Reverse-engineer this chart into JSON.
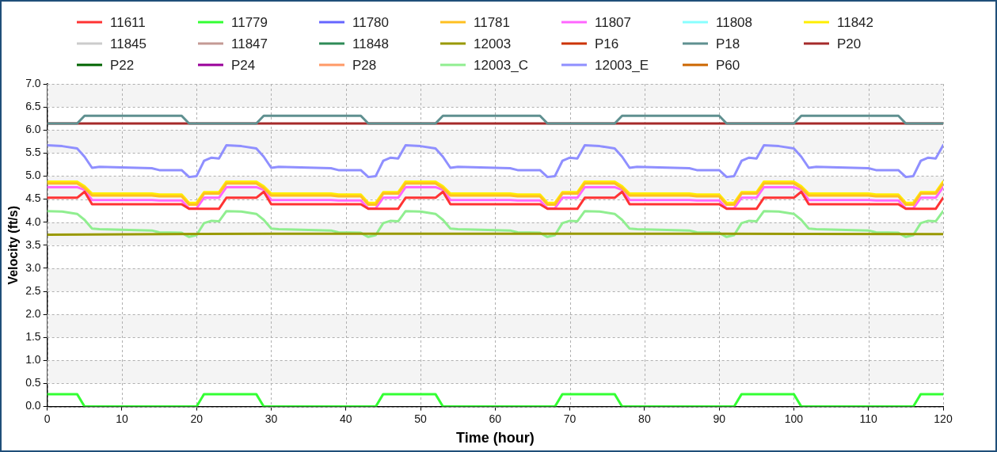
{
  "chart_data": {
    "type": "line",
    "xlabel": "Time (hour)",
    "ylabel": "Velocity (ft/s)",
    "x": [
      0,
      4,
      5,
      6,
      14,
      15,
      18,
      19,
      20,
      21,
      23,
      24,
      28,
      29,
      30,
      38,
      39,
      42,
      43,
      44,
      45,
      47,
      48,
      52,
      53,
      54,
      62,
      63,
      66,
      67,
      68,
      69,
      71,
      72,
      76,
      77,
      78,
      86,
      87,
      90,
      91,
      92,
      93,
      95,
      96,
      100,
      101,
      102,
      110,
      111,
      114,
      115,
      116,
      117,
      119,
      120
    ],
    "xlim": [
      0,
      120
    ],
    "xticks": [
      0,
      10,
      20,
      30,
      40,
      50,
      60,
      70,
      80,
      90,
      100,
      110,
      120
    ],
    "ylim": [
      0,
      7
    ],
    "yticks": [
      {
        "value": 0,
        "label": "0.0"
      },
      0.5,
      {
        "value": 1,
        "label": "1.0"
      },
      1.5,
      {
        "value": 2,
        "label": "2.0"
      },
      2.5,
      {
        "value": 3,
        "label": "3.0"
      },
      3.5,
      {
        "value": 4,
        "label": "4.0"
      },
      4.5,
      {
        "value": 5,
        "label": "5.0"
      },
      5.5,
      {
        "value": 6,
        "label": "6.0"
      },
      6.5,
      {
        "value": 7,
        "label": "7.0"
      }
    ],
    "grid": true,
    "legend": "top",
    "marker": "none",
    "line_style": "solid",
    "series": [
      {
        "name": "11611",
        "color": "#ff3333",
        "values": [
          4.53,
          4.53,
          4.66,
          4.39,
          4.39,
          4.39,
          4.39,
          4.29,
          4.29,
          4.29,
          4.29,
          4.53,
          4.53,
          4.66,
          4.39,
          4.39,
          4.39,
          4.39,
          4.29,
          4.29,
          4.29,
          4.29,
          4.53,
          4.53,
          4.66,
          4.39,
          4.39,
          4.39,
          4.39,
          4.29,
          4.29,
          4.29,
          4.29,
          4.53,
          4.53,
          4.66,
          4.39,
          4.39,
          4.39,
          4.39,
          4.29,
          4.29,
          4.29,
          4.29,
          4.53,
          4.53,
          4.66,
          4.39,
          4.39,
          4.39,
          4.39,
          4.29,
          4.29,
          4.29,
          4.29,
          4.53
        ]
      },
      {
        "name": "11779",
        "color": "#33ff33",
        "x": [
          0,
          4,
          5,
          20,
          21,
          28,
          29,
          44,
          45,
          52,
          53,
          68,
          69,
          76,
          77,
          92,
          93,
          100,
          101,
          116,
          117,
          120
        ],
        "values": [
          0.27,
          0.27,
          0,
          0,
          0.27,
          0.27,
          0,
          0,
          0.27,
          0.27,
          0,
          0,
          0.27,
          0.27,
          0,
          0,
          0.27,
          0.27,
          0,
          0,
          0.27,
          0.27
        ]
      },
      {
        "name": "11780",
        "color": "#6666ff",
        "values": [
          null,
          null,
          null,
          null,
          null,
          null,
          null,
          null,
          null,
          null,
          null,
          null,
          null,
          null,
          null,
          null,
          null,
          null,
          null,
          null,
          null,
          null,
          null,
          null,
          null,
          null,
          null,
          null,
          null,
          null,
          null,
          null,
          null,
          null,
          null,
          null,
          null,
          null,
          null,
          null,
          null,
          null,
          null,
          null,
          null,
          null,
          null,
          null,
          null,
          null,
          null,
          null,
          null,
          null,
          null,
          null
        ]
      },
      {
        "name": "11781",
        "color": "#ffc020",
        "values": [
          4.84,
          4.84,
          4.74,
          4.58,
          4.58,
          4.56,
          4.56,
          4.38,
          4.38,
          4.62,
          4.62,
          4.84,
          4.84,
          4.74,
          4.58,
          4.58,
          4.56,
          4.56,
          4.38,
          4.38,
          4.62,
          4.62,
          4.84,
          4.84,
          4.74,
          4.58,
          4.58,
          4.56,
          4.56,
          4.38,
          4.38,
          4.62,
          4.62,
          4.84,
          4.84,
          4.74,
          4.58,
          4.58,
          4.56,
          4.56,
          4.38,
          4.38,
          4.62,
          4.62,
          4.84,
          4.84,
          4.74,
          4.58,
          4.58,
          4.56,
          4.56,
          4.38,
          4.38,
          4.62,
          4.62,
          4.84
        ]
      },
      {
        "name": "11807",
        "color": "#ff66ff",
        "values": [
          4.76,
          4.76,
          4.7,
          4.48,
          4.48,
          4.47,
          4.47,
          4.3,
          4.3,
          4.53,
          4.53,
          4.76,
          4.76,
          4.7,
          4.48,
          4.48,
          4.47,
          4.47,
          4.3,
          4.3,
          4.53,
          4.53,
          4.76,
          4.76,
          4.7,
          4.48,
          4.48,
          4.47,
          4.47,
          4.3,
          4.3,
          4.53,
          4.53,
          4.76,
          4.76,
          4.7,
          4.48,
          4.48,
          4.47,
          4.47,
          4.3,
          4.3,
          4.53,
          4.53,
          4.76,
          4.76,
          4.7,
          4.48,
          4.48,
          4.47,
          4.47,
          4.3,
          4.3,
          4.53,
          4.53,
          4.76
        ]
      },
      {
        "name": "11808",
        "color": "#88ffff",
        "values": [
          null,
          null,
          null,
          null,
          null,
          null,
          null,
          null,
          null,
          null,
          null,
          null,
          null,
          null,
          null,
          null,
          null,
          null,
          null,
          null,
          null,
          null,
          null,
          null,
          null,
          null,
          null,
          null,
          null,
          null,
          null,
          null,
          null,
          null,
          null,
          null,
          null,
          null,
          null,
          null,
          null,
          null,
          null,
          null,
          null,
          null,
          null,
          null,
          null,
          null,
          null,
          null,
          null,
          null,
          null,
          null
        ]
      },
      {
        "name": "11842",
        "color": "#ffee00",
        "values": [
          4.88,
          4.88,
          4.78,
          4.62,
          4.62,
          4.6,
          4.6,
          4.42,
          4.42,
          4.65,
          4.65,
          4.88,
          4.88,
          4.78,
          4.62,
          4.62,
          4.6,
          4.6,
          4.42,
          4.42,
          4.65,
          4.65,
          4.88,
          4.88,
          4.78,
          4.62,
          4.62,
          4.6,
          4.6,
          4.42,
          4.42,
          4.65,
          4.65,
          4.88,
          4.88,
          4.78,
          4.62,
          4.62,
          4.6,
          4.6,
          4.42,
          4.42,
          4.65,
          4.65,
          4.88,
          4.88,
          4.78,
          4.62,
          4.62,
          4.6,
          4.6,
          4.42,
          4.42,
          4.65,
          4.65,
          4.88
        ]
      },
      {
        "name": "11845",
        "color": "#cccccc",
        "values": [
          null,
          null,
          null,
          null,
          null,
          null,
          null,
          null,
          null,
          null,
          null,
          null,
          null,
          null,
          null,
          null,
          null,
          null,
          null,
          null,
          null,
          null,
          null,
          null,
          null,
          null,
          null,
          null,
          null,
          null,
          null,
          null,
          null,
          null,
          null,
          null,
          null,
          null,
          null,
          null,
          null,
          null,
          null,
          null,
          null,
          null,
          null,
          null,
          null,
          null,
          null,
          null,
          null,
          null,
          null,
          null
        ]
      },
      {
        "name": "11847",
        "color": "#c49a94",
        "values": [
          null,
          null,
          null,
          null,
          null,
          null,
          null,
          null,
          null,
          null,
          null,
          null,
          null,
          null,
          null,
          null,
          null,
          null,
          null,
          null,
          null,
          null,
          null,
          null,
          null,
          null,
          null,
          null,
          null,
          null,
          null,
          null,
          null,
          null,
          null,
          null,
          null,
          null,
          null,
          null,
          null,
          null,
          null,
          null,
          null,
          null,
          null,
          null,
          null,
          null,
          null,
          null,
          null,
          null,
          null,
          null
        ]
      },
      {
        "name": "11848",
        "color": "#2e8b57",
        "values": [
          null,
          null,
          null,
          null,
          null,
          null,
          null,
          null,
          null,
          null,
          null,
          null,
          null,
          null,
          null,
          null,
          null,
          null,
          null,
          null,
          null,
          null,
          null,
          null,
          null,
          null,
          null,
          null,
          null,
          null,
          null,
          null,
          null,
          null,
          null,
          null,
          null,
          null,
          null,
          null,
          null,
          null,
          null,
          null,
          null,
          null,
          null,
          null,
          null,
          null,
          null,
          null,
          null,
          null,
          null,
          null
        ]
      },
      {
        "name": "12003",
        "color": "#999900",
        "x": [
          0,
          30,
          60,
          90,
          120
        ],
        "values": [
          3.73,
          3.75,
          3.75,
          3.75,
          3.74
        ]
      },
      {
        "name": "P16",
        "color": "#cc3300",
        "values": [
          null,
          null,
          null,
          null,
          null,
          null,
          null,
          null,
          null,
          null,
          null,
          null,
          null,
          null,
          null,
          null,
          null,
          null,
          null,
          null,
          null,
          null,
          null,
          null,
          null,
          null,
          null,
          null,
          null,
          null,
          null,
          null,
          null,
          null,
          null,
          null,
          null,
          null,
          null,
          null,
          null,
          null,
          null,
          null,
          null,
          null,
          null,
          null,
          null,
          null,
          null,
          null,
          null,
          null,
          null,
          null
        ]
      },
      {
        "name": "P18",
        "color": "#5f9090",
        "x": [
          0,
          4,
          5,
          18,
          19,
          28,
          29,
          42,
          43,
          52,
          53,
          66,
          67,
          76,
          77,
          90,
          91,
          100,
          101,
          114,
          115,
          120
        ],
        "values": [
          6.14,
          6.14,
          6.31,
          6.31,
          6.14,
          6.14,
          6.31,
          6.31,
          6.14,
          6.14,
          6.31,
          6.31,
          6.14,
          6.14,
          6.31,
          6.31,
          6.14,
          6.14,
          6.31,
          6.31,
          6.14,
          6.14
        ]
      },
      {
        "name": "P20",
        "color": "#a52a2a",
        "x": [
          0,
          120
        ],
        "values": [
          6.14,
          6.14
        ]
      },
      {
        "name": "P22",
        "color": "#006400",
        "values": [
          null,
          null,
          null,
          null,
          null,
          null,
          null,
          null,
          null,
          null,
          null,
          null,
          null,
          null,
          null,
          null,
          null,
          null,
          null,
          null,
          null,
          null,
          null,
          null,
          null,
          null,
          null,
          null,
          null,
          null,
          null,
          null,
          null,
          null,
          null,
          null,
          null,
          null,
          null,
          null,
          null,
          null,
          null,
          null,
          null,
          null,
          null,
          null,
          null,
          null,
          null,
          null,
          null,
          null,
          null,
          null
        ]
      },
      {
        "name": "P24",
        "color": "#990099",
        "values": [
          null,
          null,
          null,
          null,
          null,
          null,
          null,
          null,
          null,
          null,
          null,
          null,
          null,
          null,
          null,
          null,
          null,
          null,
          null,
          null,
          null,
          null,
          null,
          null,
          null,
          null,
          null,
          null,
          null,
          null,
          null,
          null,
          null,
          null,
          null,
          null,
          null,
          null,
          null,
          null,
          null,
          null,
          null,
          null,
          null,
          null,
          null,
          null,
          null,
          null,
          null,
          null,
          null,
          null,
          null,
          null
        ]
      },
      {
        "name": "P28",
        "color": "#ff9966",
        "values": [
          null,
          null,
          null,
          null,
          null,
          null,
          null,
          null,
          null,
          null,
          null,
          null,
          null,
          null,
          null,
          null,
          null,
          null,
          null,
          null,
          null,
          null,
          null,
          null,
          null,
          null,
          null,
          null,
          null,
          null,
          null,
          null,
          null,
          null,
          null,
          null,
          null,
          null,
          null,
          null,
          null,
          null,
          null,
          null,
          null,
          null,
          null,
          null,
          null,
          null,
          null,
          null,
          null,
          null,
          null,
          null
        ]
      },
      {
        "name": "12003_C",
        "color": "#90ee90",
        "x": [
          0,
          2,
          4,
          5,
          6,
          7,
          14,
          15,
          18,
          19,
          20,
          21,
          22,
          23,
          24,
          26,
          28,
          29,
          30,
          31,
          38,
          39,
          42,
          43,
          44,
          45,
          46,
          47,
          48,
          50,
          52,
          53,
          54,
          55,
          62,
          63,
          66,
          67,
          68,
          69,
          70,
          71,
          72,
          74,
          76,
          77,
          78,
          79,
          86,
          87,
          90,
          91,
          92,
          93,
          94,
          95,
          96,
          98,
          100,
          101,
          102,
          103,
          110,
          111,
          114,
          115,
          116,
          117,
          118,
          119,
          120
        ],
        "values": [
          4.24,
          4.23,
          4.18,
          4.05,
          3.86,
          3.85,
          3.82,
          3.78,
          3.77,
          3.68,
          3.72,
          3.98,
          4.03,
          4.02,
          4.24,
          4.23,
          4.18,
          4.05,
          3.86,
          3.85,
          3.82,
          3.78,
          3.77,
          3.68,
          3.72,
          3.98,
          4.03,
          4.02,
          4.24,
          4.23,
          4.18,
          4.05,
          3.86,
          3.85,
          3.82,
          3.78,
          3.77,
          3.68,
          3.72,
          3.98,
          4.03,
          4.02,
          4.24,
          4.23,
          4.18,
          4.05,
          3.86,
          3.85,
          3.82,
          3.78,
          3.77,
          3.68,
          3.72,
          3.98,
          4.03,
          4.02,
          4.24,
          4.23,
          4.18,
          4.05,
          3.86,
          3.85,
          3.82,
          3.78,
          3.77,
          3.68,
          3.72,
          3.98,
          4.03,
          4.02,
          4.24
        ]
      },
      {
        "name": "12003_E",
        "color": "#8f8fff",
        "x": [
          0,
          2,
          4,
          5,
          6,
          7,
          14,
          15,
          18,
          19,
          20,
          21,
          22,
          23,
          24,
          26,
          28,
          29,
          30,
          31,
          38,
          39,
          42,
          43,
          44,
          45,
          46,
          47,
          48,
          50,
          52,
          53,
          54,
          55,
          62,
          63,
          66,
          67,
          68,
          69,
          70,
          71,
          72,
          74,
          76,
          77,
          78,
          79,
          86,
          87,
          90,
          91,
          92,
          93,
          94,
          95,
          96,
          98,
          100,
          101,
          102,
          103,
          110,
          111,
          114,
          115,
          116,
          117,
          118,
          119,
          120
        ],
        "values": [
          5.67,
          5.65,
          5.6,
          5.42,
          5.18,
          5.2,
          5.17,
          5.13,
          5.13,
          4.98,
          5.0,
          5.33,
          5.4,
          5.38,
          5.67,
          5.65,
          5.6,
          5.42,
          5.18,
          5.2,
          5.17,
          5.13,
          5.13,
          4.98,
          5.0,
          5.33,
          5.4,
          5.38,
          5.67,
          5.65,
          5.6,
          5.42,
          5.18,
          5.2,
          5.17,
          5.13,
          5.13,
          4.98,
          5.0,
          5.33,
          5.4,
          5.38,
          5.67,
          5.65,
          5.6,
          5.42,
          5.18,
          5.2,
          5.17,
          5.13,
          5.13,
          4.98,
          5.0,
          5.33,
          5.4,
          5.38,
          5.67,
          5.65,
          5.6,
          5.42,
          5.18,
          5.2,
          5.17,
          5.13,
          5.13,
          4.98,
          5.0,
          5.33,
          5.4,
          5.38,
          5.67
        ]
      },
      {
        "name": "P60",
        "color": "#cc6600",
        "values": [
          null,
          null,
          null,
          null,
          null,
          null,
          null,
          null,
          null,
          null,
          null,
          null,
          null,
          null,
          null,
          null,
          null,
          null,
          null,
          null,
          null,
          null,
          null,
          null,
          null,
          null,
          null,
          null,
          null,
          null,
          null,
          null,
          null,
          null,
          null,
          null,
          null,
          null,
          null,
          null,
          null,
          null,
          null,
          null,
          null,
          null,
          null,
          null,
          null,
          null,
          null,
          null,
          null,
          null,
          null,
          null
        ]
      }
    ]
  }
}
